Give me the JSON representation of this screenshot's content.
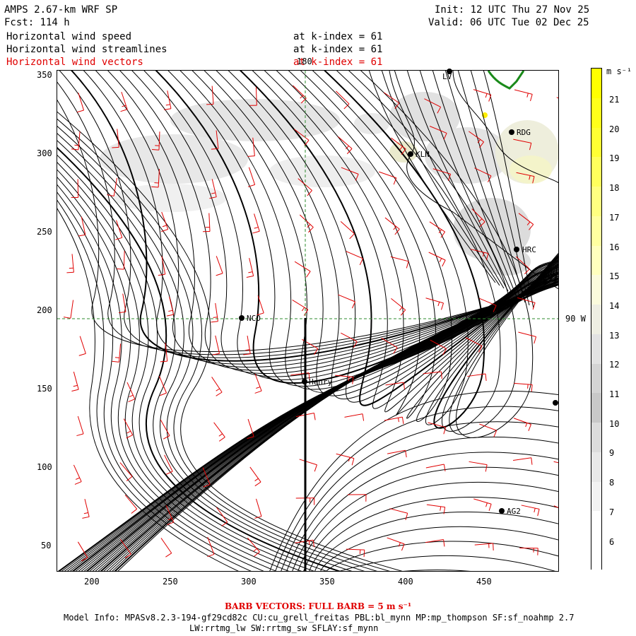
{
  "header": {
    "title": "AMPS 2.67-km WRF SP",
    "forecast": "Fcst: 114 h",
    "init": "Init: 12 UTC Thu 27 Nov 25",
    "valid": "Valid: 06 UTC Tue 02 Dec 25"
  },
  "fields": [
    {
      "name": "Horizontal wind speed",
      "level": "at k-index = 61",
      "color": "#000000"
    },
    {
      "name": "Horizontal wind streamlines",
      "level": "at k-index = 61",
      "color": "#000000"
    },
    {
      "name": "Horizontal wind vectors",
      "level": "at k-index = 61",
      "color": "#e00000"
    }
  ],
  "map": {
    "x_ticks": [
      "200",
      "250",
      "300",
      "350",
      "400",
      "450"
    ],
    "y_ticks": [
      "350",
      "300",
      "250",
      "200",
      "150",
      "100",
      "50"
    ],
    "meridian_label": "180",
    "parallel_label": "90 W",
    "stations": [
      "LV",
      "RDG",
      "KLN",
      "HRC",
      "NCO",
      "Henry",
      "AG2"
    ],
    "streamline_color": "#000000",
    "barb_color": "#e00000",
    "grid_color": "#2e8b2e"
  },
  "colorbar": {
    "unit": "m s⁻¹",
    "labels": [
      "21",
      "20",
      "19",
      "18",
      "17",
      "16",
      "15",
      "14",
      "13",
      "12",
      "11",
      "10",
      "9",
      "8",
      "7",
      "6"
    ]
  },
  "footer": {
    "barb_note": "BARB VECTORS: FULL BARB = 5 m s⁻¹",
    "model_info": "Model Info: MPASv8.2.3-194-gf29cd82c CU:cu_grell_freitas PBL:bl_mynn MP:mp_thompson SF:sf_noahmp 2.7",
    "model_info2": "LW:rrtmg_lw SW:rrtmg_sw SFLAY:sf_mynn"
  }
}
